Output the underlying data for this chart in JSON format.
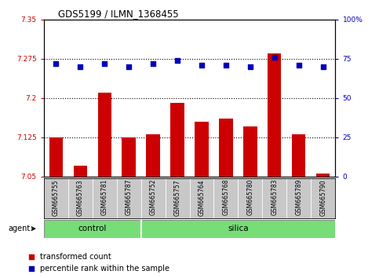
{
  "title": "GDS5199 / ILMN_1368455",
  "samples": [
    "GSM665755",
    "GSM665763",
    "GSM665781",
    "GSM665787",
    "GSM665752",
    "GSM665757",
    "GSM665764",
    "GSM665768",
    "GSM665780",
    "GSM665783",
    "GSM665789",
    "GSM665790"
  ],
  "bar_values": [
    7.125,
    7.07,
    7.21,
    7.125,
    7.13,
    7.19,
    7.155,
    7.16,
    7.145,
    7.285,
    7.13,
    7.055
  ],
  "dot_values": [
    72,
    70,
    72,
    70,
    72,
    74,
    71,
    71,
    70,
    76,
    71,
    70
  ],
  "ylim_left": [
    7.05,
    7.35
  ],
  "ylim_right": [
    0,
    100
  ],
  "yticks_left": [
    7.05,
    7.125,
    7.2,
    7.275,
    7.35
  ],
  "yticks_right": [
    0,
    25,
    50,
    75,
    100
  ],
  "ytick_labels_left": [
    "7.05",
    "7.125",
    "7.2",
    "7.275",
    "7.35"
  ],
  "ytick_labels_right": [
    "0",
    "25",
    "50",
    "75",
    "100%"
  ],
  "hlines": [
    7.125,
    7.2,
    7.275
  ],
  "bar_color": "#cc0000",
  "dot_color": "#0000bb",
  "bar_bottom": 7.05,
  "agent_label": "agent",
  "legend_bar_label": "transformed count",
  "legend_dot_label": "percentile rank within the sample",
  "control_count": 4,
  "silica_count": 8,
  "tick_area_bg": "#c8c8c8",
  "green_color": "#77dd77",
  "background_color": "#ffffff"
}
